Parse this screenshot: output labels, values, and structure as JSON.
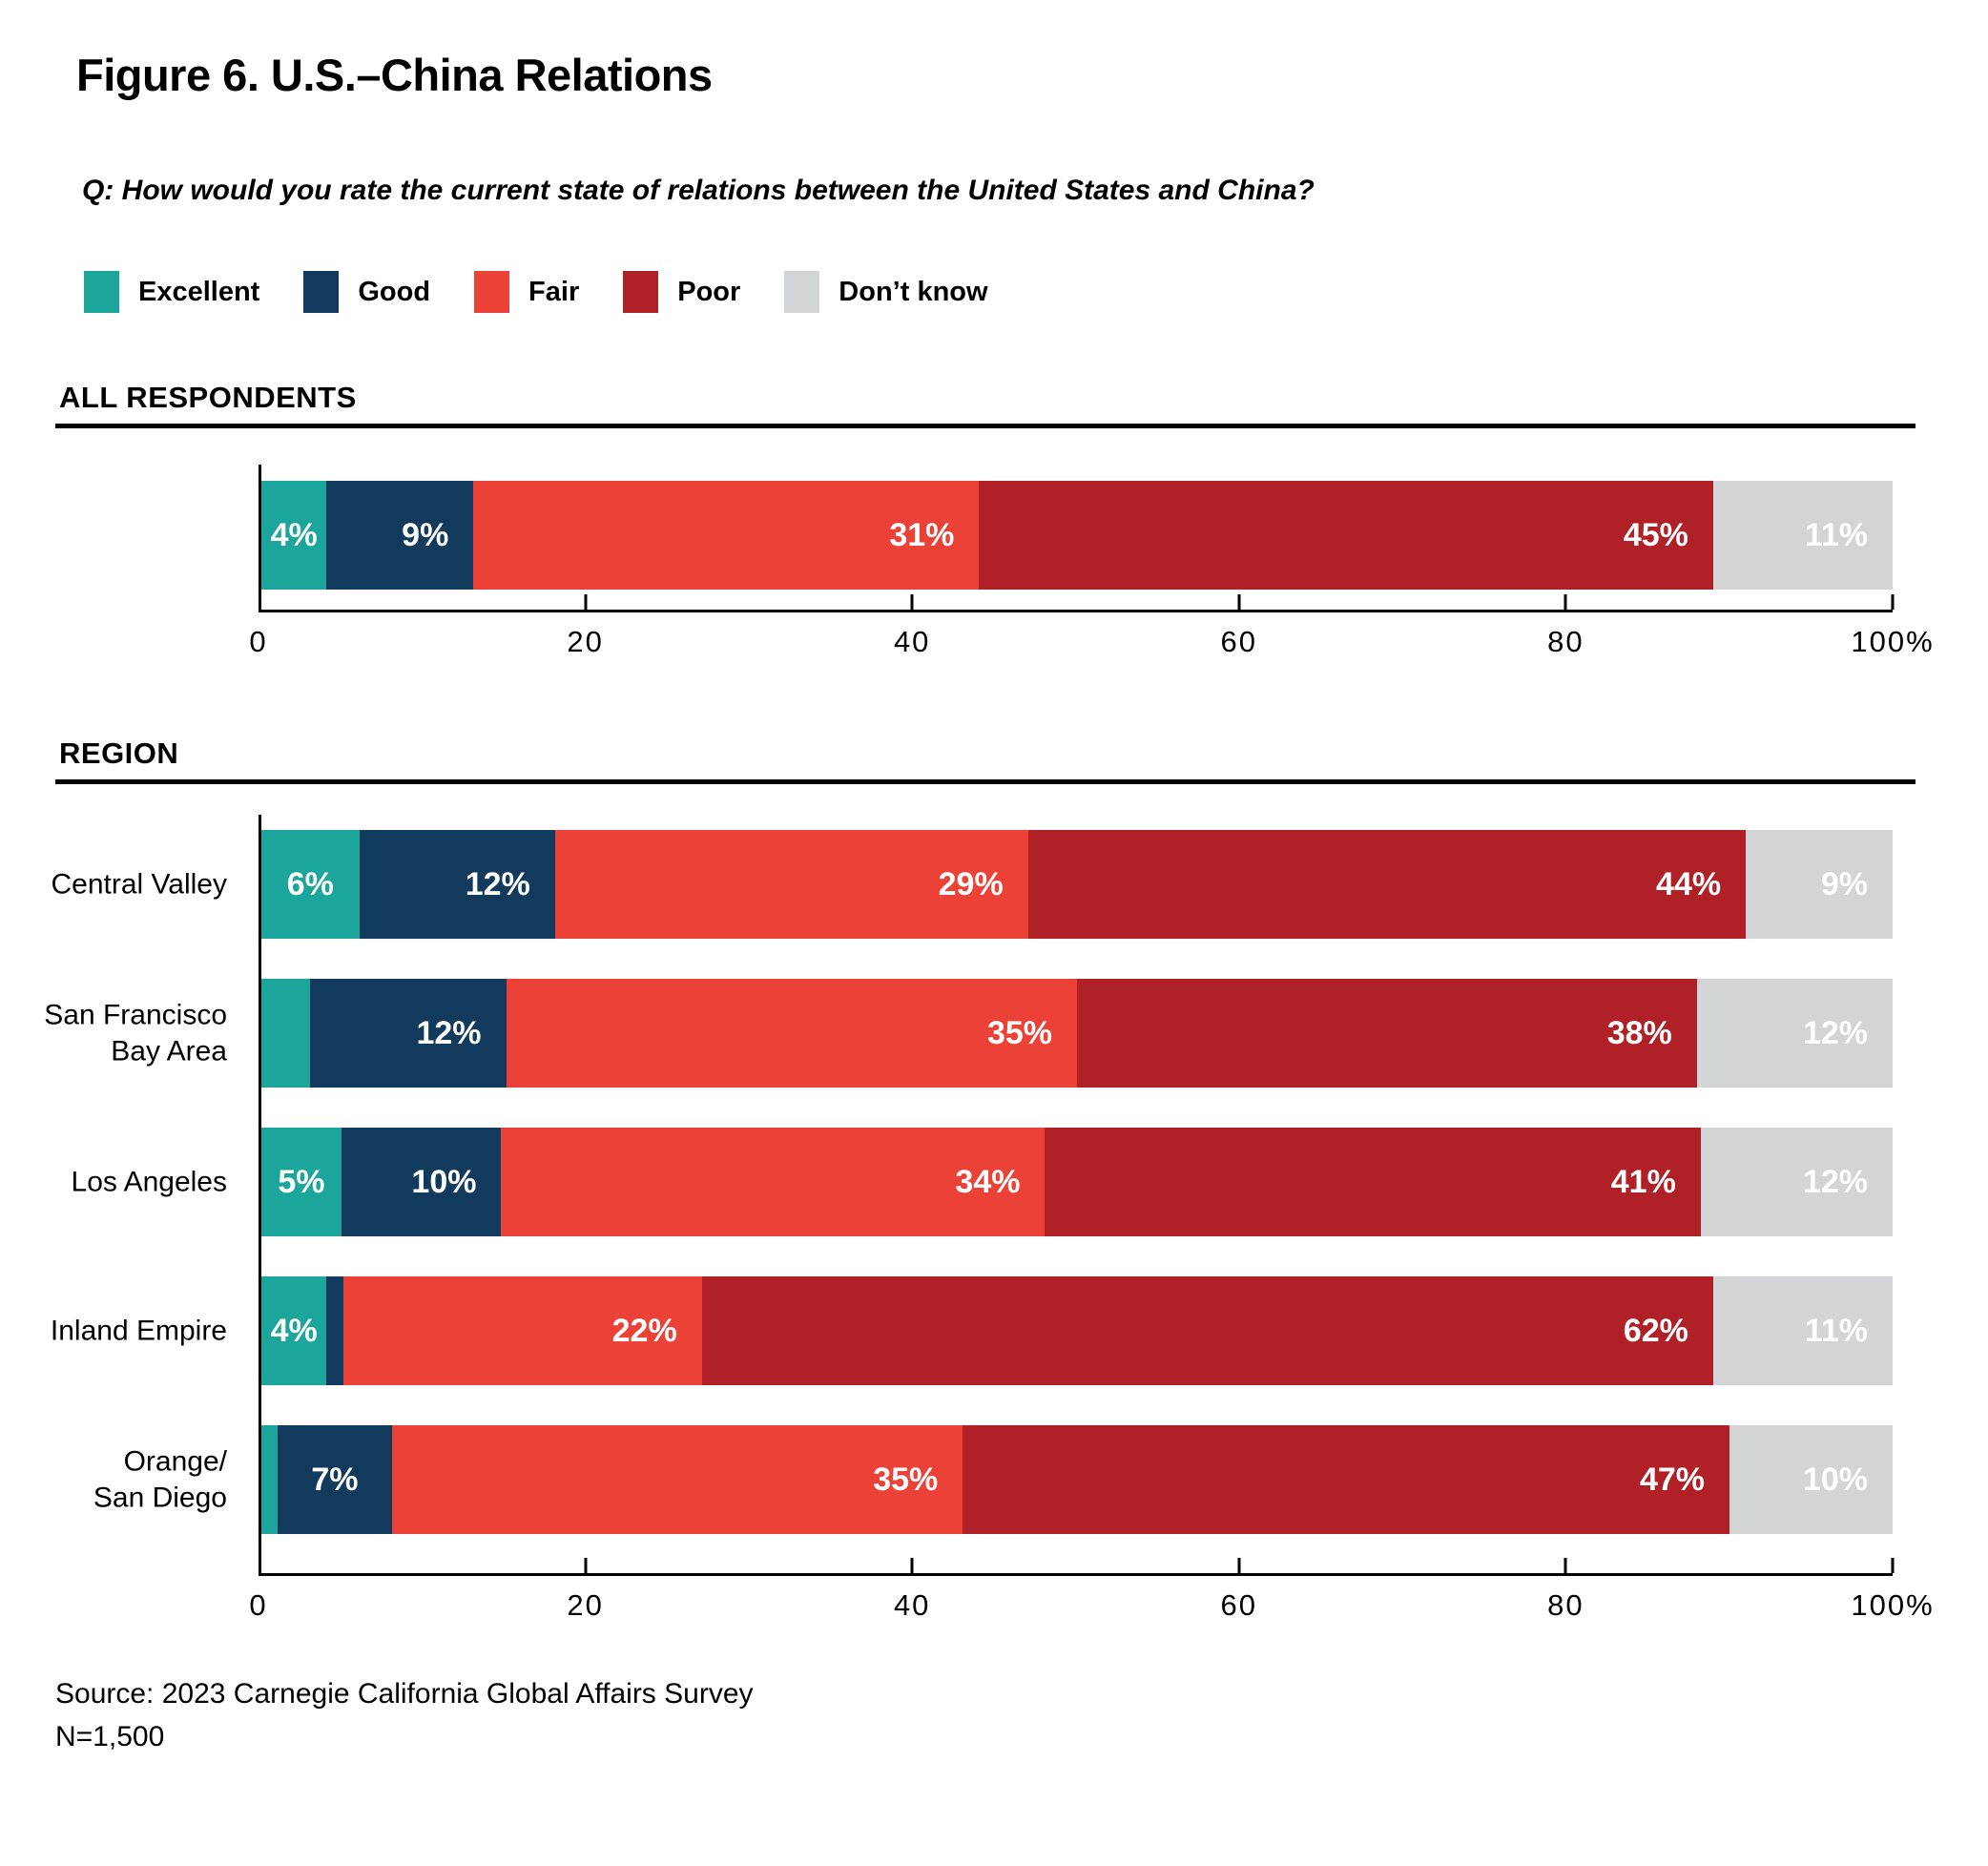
{
  "title": "Figure 6. U.S.–China Relations",
  "question": "Q: How would you rate the current state of relations between the United States and China?",
  "legend": [
    {
      "label": "Excellent",
      "color": "#1CA69B"
    },
    {
      "label": "Good",
      "color": "#123A5D"
    },
    {
      "label": "Fair",
      "color": "#EC4137"
    },
    {
      "label": "Poor",
      "color": "#B02027"
    },
    {
      "label": "Don’t know",
      "color": "#D3D4D5"
    }
  ],
  "source": {
    "line1": "Source: 2023 Carnegie California Global Affairs Survey",
    "line2": "N=1,500"
  },
  "chart_data": [
    {
      "type": "bar",
      "stacked": true,
      "orientation": "horizontal",
      "section_title": "ALL RESPONDENTS",
      "categories": [
        ""
      ],
      "series": [
        {
          "name": "Excellent",
          "values": [
            4
          ],
          "labels": [
            "4%"
          ]
        },
        {
          "name": "Good",
          "values": [
            9
          ],
          "labels": [
            "9%"
          ]
        },
        {
          "name": "Fair",
          "values": [
            31
          ],
          "labels": [
            "31%"
          ]
        },
        {
          "name": "Poor",
          "values": [
            45
          ],
          "labels": [
            "45%"
          ]
        },
        {
          "name": "Don’t know",
          "values": [
            11
          ],
          "labels": [
            "11%"
          ]
        }
      ],
      "xlim": [
        0,
        100
      ],
      "xticks": [
        0,
        20,
        40,
        60,
        80,
        100
      ],
      "xtick_labels": [
        "0",
        "20",
        "40",
        "60",
        "80",
        "100%"
      ],
      "grid": false,
      "legend_position": "top"
    },
    {
      "type": "bar",
      "stacked": true,
      "orientation": "horizontal",
      "section_title": "REGION",
      "categories": [
        "Central Valley",
        "San Francisco\nBay Area",
        "Los Angeles",
        "Inland Empire",
        "Orange/\nSan Diego"
      ],
      "series": [
        {
          "name": "Excellent",
          "values": [
            6,
            3,
            5,
            4,
            1
          ],
          "labels": [
            "6%",
            "",
            "5%",
            "4%",
            ""
          ]
        },
        {
          "name": "Good",
          "values": [
            12,
            12,
            10,
            1,
            7
          ],
          "labels": [
            "12%",
            "12%",
            "10%",
            "",
            "7%"
          ]
        },
        {
          "name": "Fair",
          "values": [
            29,
            35,
            34,
            22,
            35
          ],
          "labels": [
            "29%",
            "35%",
            "34%",
            "22%",
            "35%"
          ]
        },
        {
          "name": "Poor",
          "values": [
            44,
            38,
            41,
            62,
            47
          ],
          "labels": [
            "44%",
            "38%",
            "41%",
            "62%",
            "47%"
          ]
        },
        {
          "name": "Don’t know",
          "values": [
            9,
            12,
            12,
            11,
            10
          ],
          "labels": [
            "9%",
            "12%",
            "12%",
            "11%",
            "10%"
          ]
        }
      ],
      "xlim": [
        0,
        100
      ],
      "xticks": [
        0,
        20,
        40,
        60,
        80,
        100
      ],
      "xtick_labels": [
        "0",
        "20",
        "40",
        "60",
        "80",
        "100%"
      ],
      "grid": false,
      "legend_position": "top"
    }
  ]
}
